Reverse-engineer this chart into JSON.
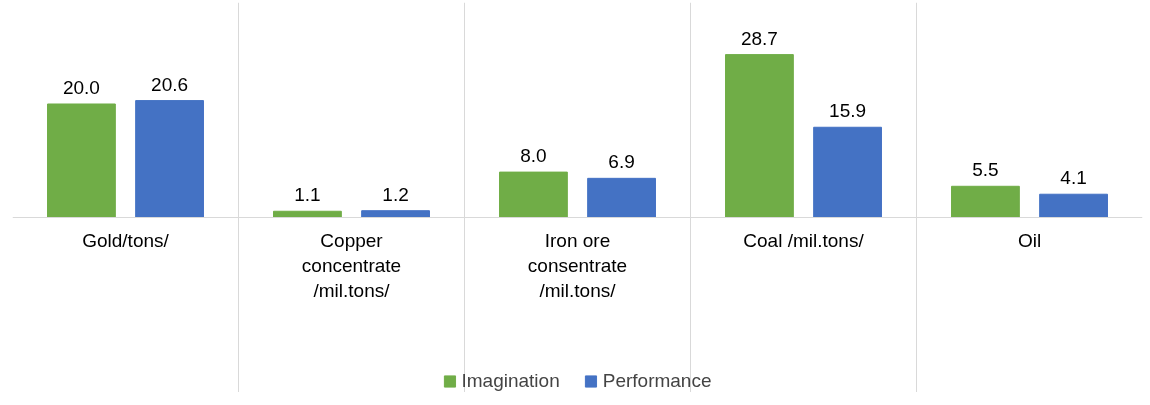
{
  "chart_data": {
    "type": "bar",
    "categories": [
      "Gold/tons/",
      "Copper\nconcentrate\n/mil.tons/",
      "Iron ore\nconsentrate\n/mil.tons/",
      "Coal /mil.tons/",
      "Oil"
    ],
    "series": [
      {
        "name": "Imagination",
        "color": "#70ad47",
        "values": [
          20.0,
          1.1,
          8.0,
          28.7,
          5.5
        ],
        "value_labels": [
          "20.0",
          "1.1",
          "8.0",
          "28.7",
          "5.5"
        ]
      },
      {
        "name": "Performance",
        "color": "#4472c4",
        "values": [
          20.6,
          1.2,
          6.9,
          15.9,
          4.1
        ],
        "value_labels": [
          "20.6",
          "1.2",
          "6.9",
          "15.9",
          "4.1"
        ]
      }
    ],
    "grid": "x",
    "legend": "bottom"
  }
}
